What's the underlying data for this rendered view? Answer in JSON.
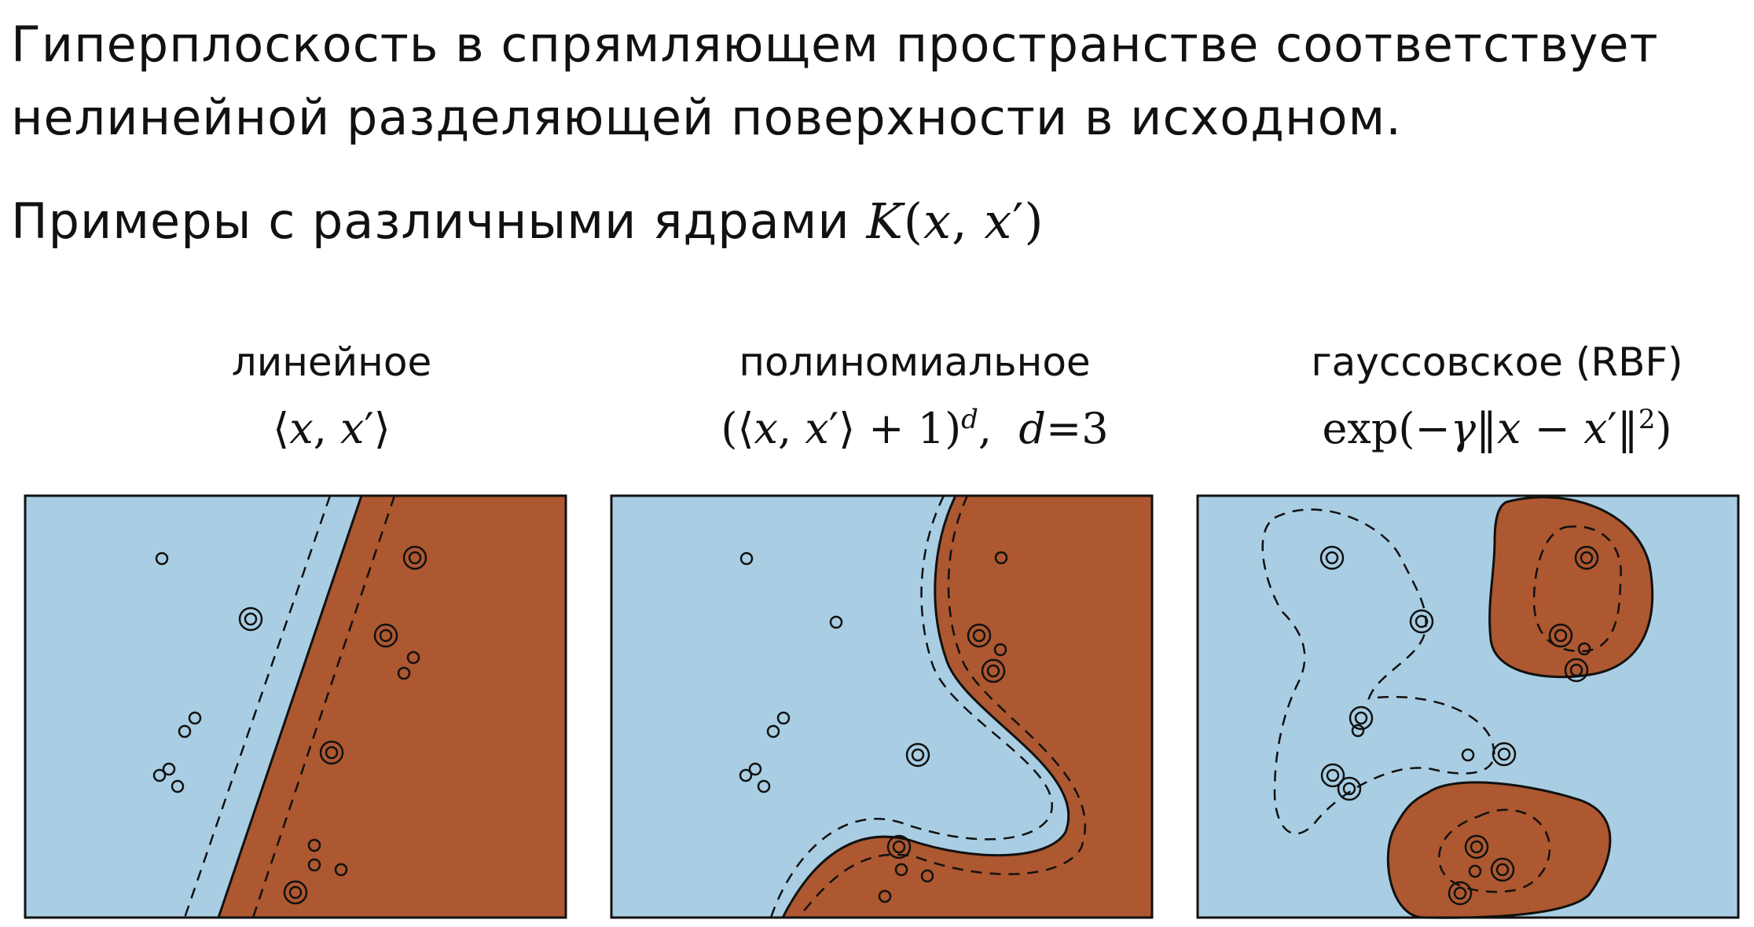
{
  "intro": {
    "text": "Гиперплоскость в спрямляющем пространстве соответствует нелинейной разделяющей поверхности в исходном."
  },
  "examples": {
    "text": "Примеры с различными ядрами",
    "formula": "K(x, x′)"
  },
  "kernels": [
    {
      "name": "линейное",
      "formula": "⟨x, x′⟩"
    },
    {
      "name": "полиномиальное",
      "formula": "(⟨x, x′⟩ + 1)",
      "exponent": "d",
      "param": "d=3"
    },
    {
      "name": "гауссовское (RBF)",
      "formula": "exp(−γ‖x − x′‖²)"
    }
  ],
  "colors": {
    "class_a": "#a9cee3",
    "class_b": "#ad5830",
    "border": "#111111"
  }
}
